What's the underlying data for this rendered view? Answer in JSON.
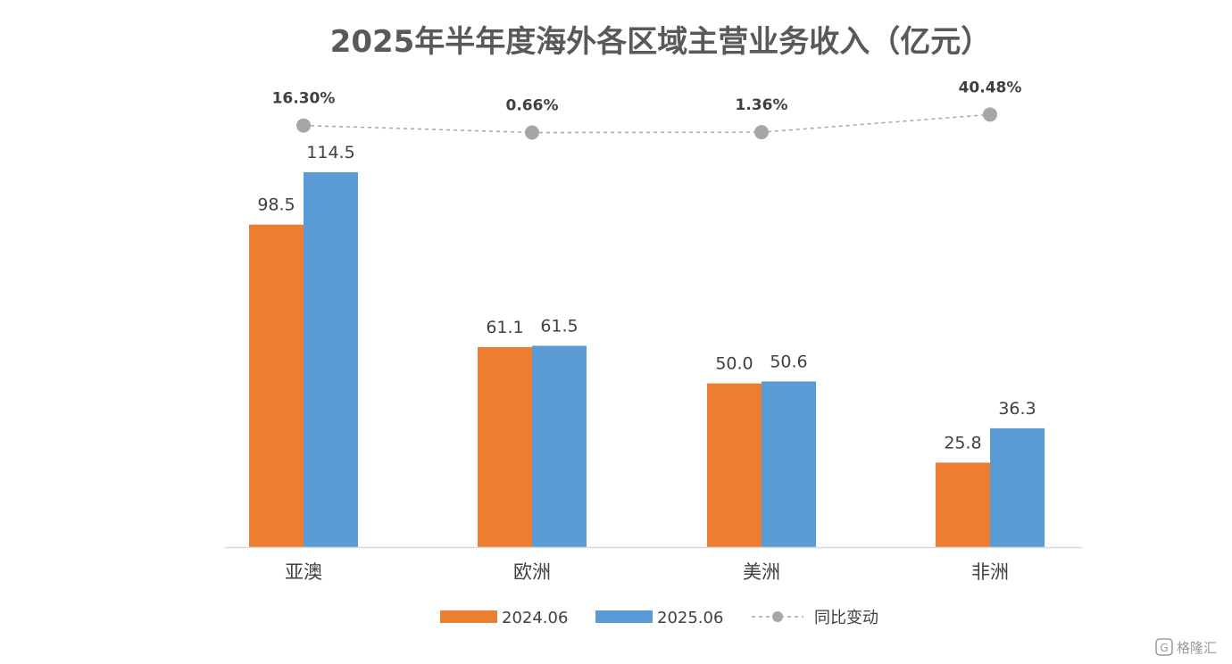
{
  "chart_data": {
    "type": "bar",
    "title": "2025年半年度海外各区域主营业务收入（亿元）",
    "categories": [
      "亚澳",
      "欧洲",
      "美洲",
      "非洲"
    ],
    "series": [
      {
        "name": "2024.06",
        "values": [
          98.5,
          61.1,
          50.0,
          25.8
        ],
        "value_labels": [
          "98.5",
          "61.1",
          "50.0",
          "25.8"
        ],
        "color": "#ED7D31"
      },
      {
        "name": "2025.06",
        "values": [
          114.5,
          61.5,
          50.6,
          36.3
        ],
        "value_labels": [
          "114.5",
          "61.5",
          "50.6",
          "36.3"
        ],
        "color": "#5B9BD5"
      }
    ],
    "line_series": {
      "name": "同比变动",
      "values": [
        16.3,
        0.66,
        1.36,
        40.48
      ],
      "value_labels": [
        "16.30%",
        "0.66%",
        "1.36%",
        "40.48%"
      ],
      "color": "#A6A6A6",
      "style": "dashed-with-markers"
    },
    "ylim": [
      0,
      115
    ],
    "grid": false,
    "legend": "bottom-center"
  },
  "watermark": {
    "icon": "gelonghui-logo-icon",
    "text": "格隆汇"
  }
}
